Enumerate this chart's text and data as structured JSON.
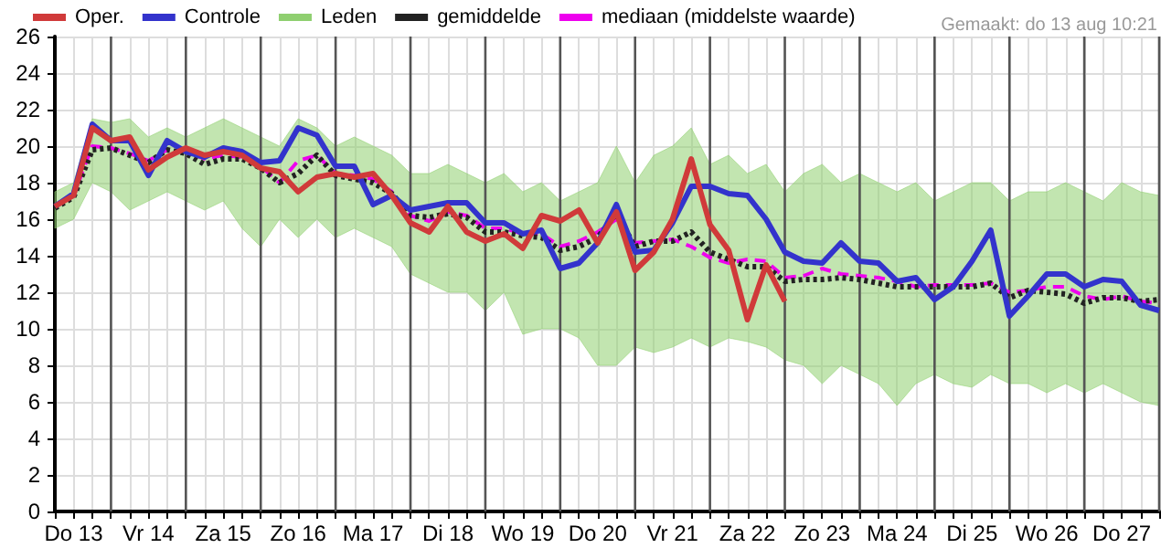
{
  "chart_data": {
    "type": "line",
    "annotations": [
      "Gemaakt: do 13 aug 10:21"
    ],
    "categories": [
      null,
      "Do 13",
      null,
      null,
      null,
      "Vr 14",
      null,
      null,
      null,
      "Za 15",
      null,
      null,
      null,
      "Zo 16",
      null,
      null,
      null,
      "Ma 17",
      null,
      null,
      null,
      "Di 18",
      null,
      null,
      null,
      "Wo 19",
      null,
      null,
      null,
      "Do 20",
      null,
      null,
      null,
      "Vr 21",
      null,
      null,
      null,
      "Za 22",
      null,
      null,
      null,
      "Zo 23",
      null,
      null,
      null,
      "Ma 24",
      null,
      null,
      null,
      "Di 25",
      null,
      null,
      null,
      "Wo 26",
      null,
      null,
      null,
      "Do 27",
      null,
      null
    ],
    "ylim": [
      0,
      26
    ],
    "yticks": [
      0,
      2,
      4,
      6,
      8,
      10,
      12,
      14,
      16,
      18,
      20,
      22,
      24,
      26
    ],
    "grid": true,
    "legend": "top",
    "marker": "none",
    "series": [
      {
        "name": "Oper.",
        "color": "#d03a3a",
        "line_style": "solid",
        "values": [
          16.7,
          17.3,
          21.0,
          20.3,
          20.5,
          18.7,
          19.4,
          19.9,
          19.5,
          19.7,
          19.5,
          18.8,
          18.6,
          17.5,
          18.3,
          18.5,
          18.3,
          18.5,
          17.3,
          15.8,
          15.3,
          16.7,
          15.3,
          14.8,
          15.2,
          14.4,
          16.2,
          15.9,
          16.5,
          14.7,
          16.4,
          13.2,
          14.2,
          16.0,
          19.3,
          15.7,
          14.3,
          10.5,
          13.5,
          11.5,
          null,
          null,
          null,
          null,
          null,
          null,
          null,
          null,
          null,
          null,
          null,
          null,
          null,
          null,
          null,
          null,
          null,
          null,
          null,
          null
        ]
      },
      {
        "name": "Controle",
        "color": "#3333cc",
        "line_style": "solid",
        "values": [
          16.7,
          17.4,
          21.2,
          20.3,
          20.3,
          18.4,
          20.3,
          19.7,
          19.4,
          19.9,
          19.7,
          19.1,
          19.2,
          21.0,
          20.6,
          18.9,
          18.9,
          16.8,
          17.3,
          16.5,
          16.7,
          16.9,
          16.9,
          15.8,
          15.8,
          15.2,
          15.4,
          13.3,
          13.6,
          14.7,
          16.8,
          14.2,
          14.3,
          15.8,
          17.8,
          17.8,
          17.4,
          17.3,
          16.0,
          14.2,
          13.7,
          13.6,
          14.7,
          13.7,
          13.6,
          12.6,
          12.8,
          11.6,
          12.3,
          13.7,
          15.4,
          10.7,
          11.8,
          13.0,
          13.0,
          12.3,
          12.7,
          12.6,
          11.3,
          11.0
        ]
      },
      {
        "name": "Leden",
        "color": "#8fcf70",
        "values": [
          null,
          null,
          null,
          null,
          null,
          null,
          null,
          null,
          null,
          null,
          null,
          null,
          null,
          null,
          null,
          null,
          null,
          null,
          null,
          null,
          null,
          null,
          null,
          null,
          null,
          null,
          null,
          null,
          null,
          null,
          null,
          null,
          null,
          null,
          null,
          null,
          null,
          null,
          null,
          null,
          null,
          null,
          null,
          null,
          null,
          null,
          null,
          null,
          null,
          null,
          null,
          null,
          null,
          null,
          null,
          null,
          null,
          null,
          null,
          null
        ],
        "lower": [
          15.5,
          16.0,
          18.0,
          17.5,
          16.5,
          17.0,
          17.5,
          17.0,
          16.5,
          17.0,
          15.5,
          14.5,
          16.0,
          15.0,
          16.0,
          15.0,
          15.5,
          15.0,
          14.5,
          13.0,
          12.5,
          12.0,
          12.0,
          11.0,
          12.0,
          9.7,
          10.0,
          10.0,
          9.5,
          8.0,
          8.0,
          9.0,
          8.7,
          9.0,
          9.5,
          9.0,
          9.5,
          9.3,
          9.0,
          8.3,
          8.0,
          7.0,
          8.0,
          7.5,
          7.0,
          5.8,
          7.0,
          7.5,
          7.0,
          6.8,
          7.5,
          7.0,
          7.0,
          6.5,
          7.0,
          6.5,
          7.0,
          6.5,
          6.0,
          5.8
        ],
        "upper": [
          17.5,
          18.0,
          21.5,
          21.3,
          21.5,
          20.5,
          21.0,
          20.5,
          21.0,
          21.5,
          21.0,
          20.5,
          20.0,
          21.5,
          21.0,
          20.0,
          20.5,
          20.0,
          19.5,
          18.5,
          18.5,
          19.0,
          18.5,
          18.0,
          18.5,
          17.5,
          18.0,
          17.0,
          17.5,
          18.0,
          20.0,
          18.0,
          19.5,
          20.0,
          21.0,
          19.0,
          19.5,
          18.5,
          19.0,
          17.5,
          18.5,
          19.0,
          18.0,
          18.5,
          18.0,
          17.5,
          18.0,
          17.0,
          17.5,
          18.0,
          18.0,
          17.0,
          17.5,
          17.5,
          18.0,
          17.5,
          17.0,
          18.0,
          17.5,
          17.3
        ]
      },
      {
        "name": "gemiddelde",
        "color": "#222222",
        "line_style": "dotted",
        "values": [
          16.6,
          17.2,
          19.8,
          19.9,
          19.5,
          19.1,
          19.8,
          19.6,
          19.0,
          19.3,
          19.3,
          18.8,
          18.0,
          18.5,
          19.5,
          18.4,
          18.2,
          18.0,
          17.4,
          16.2,
          16.1,
          16.3,
          16.1,
          15.3,
          15.3,
          15.1,
          15.0,
          14.3,
          14.5,
          15.0,
          16.3,
          14.5,
          14.8,
          14.8,
          15.3,
          14.2,
          13.8,
          13.4,
          13.4,
          12.6,
          12.7,
          12.7,
          12.8,
          12.7,
          12.5,
          12.3,
          12.3,
          12.3,
          12.3,
          12.3,
          12.5,
          11.7,
          12.1,
          12.0,
          11.9,
          11.4,
          11.7,
          11.7,
          11.5,
          11.6
        ]
      },
      {
        "name": "mediaan (middelste waarde)",
        "color": "#ee00ee",
        "line_style": "dashed",
        "values": [
          16.7,
          17.3,
          20.0,
          19.9,
          19.6,
          19.2,
          19.8,
          19.7,
          19.3,
          19.5,
          19.4,
          18.9,
          18.0,
          19.2,
          19.5,
          18.5,
          18.4,
          18.2,
          17.5,
          16.2,
          15.9,
          16.4,
          16.2,
          15.5,
          15.5,
          15.2,
          15.2,
          14.5,
          14.8,
          15.3,
          16.0,
          14.7,
          14.8,
          14.9,
          14.5,
          13.9,
          13.6,
          13.8,
          13.7,
          12.8,
          12.9,
          13.3,
          13.0,
          12.9,
          12.8,
          12.6,
          12.3,
          12.4,
          12.4,
          12.4,
          12.5,
          12.0,
          12.1,
          12.3,
          12.3,
          11.8,
          11.6,
          11.8,
          11.5,
          11.4
        ]
      }
    ]
  }
}
